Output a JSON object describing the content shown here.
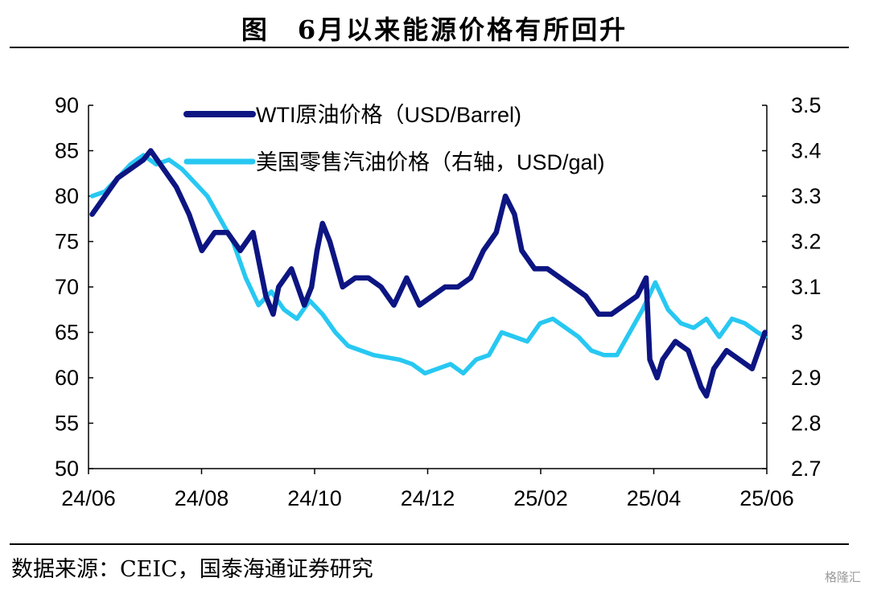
{
  "title": "图　6月以来能源价格有所回升",
  "source": "数据来源：CEIC，国泰海通证券研究",
  "watermark": "格隆汇",
  "colors": {
    "wti": "#0d1582",
    "gasoline": "#27c8f2",
    "axis": "#000000",
    "text": "#000000"
  },
  "chart_data": {
    "type": "line",
    "title": "",
    "x_tick_labels": [
      "24/06",
      "24/08",
      "24/10",
      "24/12",
      "25/02",
      "25/04",
      "25/06"
    ],
    "left_axis": {
      "ylim": [
        50,
        90
      ],
      "ticks": [
        50,
        55,
        60,
        65,
        70,
        75,
        80,
        85,
        90
      ]
    },
    "right_axis": {
      "ylim": [
        2.7,
        3.5
      ],
      "ticks": [
        "2.7",
        "2.8",
        "2.9",
        "3",
        "3.1",
        "3.2",
        "3.3",
        "3.4",
        "3.5"
      ]
    },
    "legend_position": "top-center",
    "series": [
      {
        "name": "WTI原油价格（USD/Barrel)",
        "axis": "left",
        "x": [
          "2024-06-03",
          "2024-06-10",
          "2024-06-17",
          "2024-06-24",
          "2024-07-01",
          "2024-07-05",
          "2024-07-12",
          "2024-07-19",
          "2024-07-26",
          "2024-08-02",
          "2024-08-09",
          "2024-08-16",
          "2024-08-23",
          "2024-08-30",
          "2024-09-06",
          "2024-09-10",
          "2024-09-13",
          "2024-09-20",
          "2024-09-27",
          "2024-10-01",
          "2024-10-04",
          "2024-10-07",
          "2024-10-11",
          "2024-10-18",
          "2024-10-25",
          "2024-11-01",
          "2024-11-08",
          "2024-11-15",
          "2024-11-22",
          "2024-11-29",
          "2024-12-06",
          "2024-12-13",
          "2024-12-20",
          "2024-12-27",
          "2025-01-03",
          "2025-01-10",
          "2025-01-15",
          "2025-01-20",
          "2025-01-24",
          "2025-01-31",
          "2025-02-07",
          "2025-02-14",
          "2025-02-21",
          "2025-02-28",
          "2025-03-07",
          "2025-03-14",
          "2025-03-21",
          "2025-03-28",
          "2025-04-02",
          "2025-04-04",
          "2025-04-08",
          "2025-04-11",
          "2025-04-18",
          "2025-04-25",
          "2025-05-02",
          "2025-05-05",
          "2025-05-09",
          "2025-05-16",
          "2025-05-23",
          "2025-05-30",
          "2025-06-06"
        ],
        "y": [
          78,
          80,
          82,
          83,
          84,
          85,
          83,
          81,
          78,
          74,
          76,
          76,
          74,
          76,
          69,
          67,
          70,
          72,
          68,
          70,
          74,
          77,
          75,
          70,
          71,
          71,
          70,
          68,
          71,
          68,
          69,
          70,
          70,
          71,
          74,
          76,
          80,
          78,
          74,
          72,
          72,
          71,
          70,
          69,
          67,
          67,
          68,
          69,
          71,
          62,
          60,
          62,
          64,
          63,
          59,
          58,
          61,
          63,
          62,
          61,
          65
        ]
      },
      {
        "name": "美国零售汽油价格（右轴，USD/gal)",
        "axis": "right",
        "x": [
          "2024-06-03",
          "2024-06-10",
          "2024-06-17",
          "2024-06-24",
          "2024-07-01",
          "2024-07-08",
          "2024-07-15",
          "2024-07-22",
          "2024-07-29",
          "2024-08-05",
          "2024-08-12",
          "2024-08-19",
          "2024-08-26",
          "2024-09-02",
          "2024-09-09",
          "2024-09-16",
          "2024-09-23",
          "2024-09-30",
          "2024-10-07",
          "2024-10-14",
          "2024-10-21",
          "2024-10-28",
          "2024-11-04",
          "2024-11-11",
          "2024-11-18",
          "2024-11-25",
          "2024-12-02",
          "2024-12-09",
          "2024-12-16",
          "2024-12-23",
          "2024-12-30",
          "2025-01-06",
          "2025-01-13",
          "2025-01-20",
          "2025-01-27",
          "2025-02-03",
          "2025-02-10",
          "2025-02-17",
          "2025-02-24",
          "2025-03-03",
          "2025-03-10",
          "2025-03-17",
          "2025-03-24",
          "2025-03-31",
          "2025-04-07",
          "2025-04-14",
          "2025-04-21",
          "2025-04-28",
          "2025-05-05",
          "2025-05-12",
          "2025-05-19",
          "2025-05-26",
          "2025-06-02",
          "2025-06-06"
        ],
        "y": [
          3.3,
          3.31,
          3.34,
          3.37,
          3.39,
          3.37,
          3.38,
          3.36,
          3.33,
          3.3,
          3.25,
          3.2,
          3.12,
          3.06,
          3.09,
          3.05,
          3.03,
          3.07,
          3.04,
          3.0,
          2.97,
          2.96,
          2.95,
          2.945,
          2.94,
          2.93,
          2.91,
          2.92,
          2.93,
          2.91,
          2.94,
          2.95,
          3.0,
          2.99,
          2.98,
          3.02,
          3.03,
          3.01,
          2.99,
          2.96,
          2.95,
          2.95,
          3.0,
          3.05,
          3.11,
          3.05,
          3.02,
          3.01,
          3.03,
          2.99,
          3.03,
          3.02,
          3.0,
          2.99
        ]
      }
    ]
  }
}
